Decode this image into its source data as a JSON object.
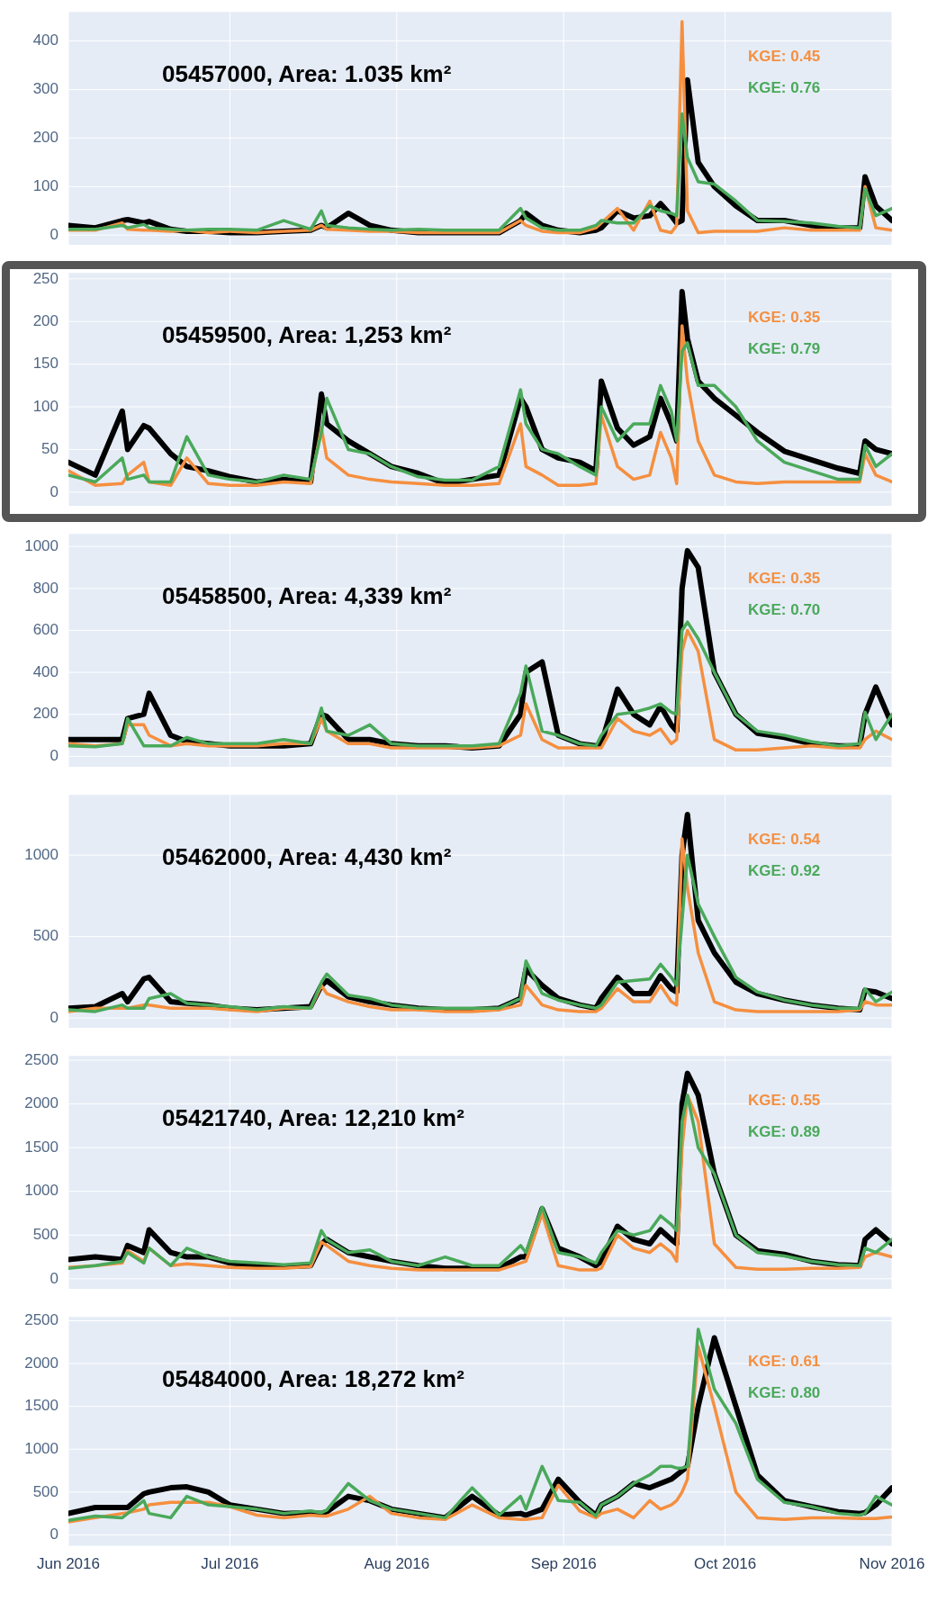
{
  "chart_data": [
    {
      "type": "line",
      "title": "05457000, Area: 1.035 km²",
      "marker": "none",
      "line_style": "solid",
      "grid": true,
      "legend": "top right",
      "tick_labels": "y",
      "xlim": [
        "2016-06-01",
        "2016-11-01"
      ],
      "xticks": [
        {
          "value": "2016-06-01",
          "label": null
        },
        {
          "value": "2016-07-01",
          "label": null
        },
        {
          "value": "2016-08-01",
          "label": null
        },
        {
          "value": "2016-09-01",
          "label": null
        },
        {
          "value": "2016-10-01",
          "label": null
        },
        {
          "value": "2016-11-01",
          "label": null
        }
      ],
      "ylim": [
        -20,
        460
      ],
      "yticks": [
        0,
        100,
        200,
        300,
        400
      ],
      "x": [
        "2016-06-01",
        "2016-06-06",
        "2016-06-11",
        "2016-06-12",
        "2016-06-15",
        "2016-06-16",
        "2016-06-20",
        "2016-06-23",
        "2016-06-27",
        "2016-07-01",
        "2016-07-06",
        "2016-07-11",
        "2016-07-16",
        "2016-07-18",
        "2016-07-19",
        "2016-07-23",
        "2016-07-27",
        "2016-07-31",
        "2016-08-05",
        "2016-08-10",
        "2016-08-15",
        "2016-08-20",
        "2016-08-24",
        "2016-08-25",
        "2016-08-28",
        "2016-08-31",
        "2016-09-04",
        "2016-09-07",
        "2016-09-08",
        "2016-09-11",
        "2016-09-14",
        "2016-09-17",
        "2016-09-19",
        "2016-09-21",
        "2016-09-22",
        "2016-09-23",
        "2016-09-24",
        "2016-09-26",
        "2016-09-29",
        "2016-10-03",
        "2016-10-07",
        "2016-10-12",
        "2016-10-17",
        "2016-10-22",
        "2016-10-26",
        "2016-10-27",
        "2016-10-29",
        "2016-11-01"
      ],
      "series": [
        {
          "color": "#000000",
          "values": [
            20,
            15,
            30,
            32,
            25,
            28,
            12,
            8,
            8,
            5,
            5,
            8,
            10,
            20,
            15,
            45,
            20,
            10,
            5,
            5,
            5,
            5,
            30,
            45,
            20,
            10,
            5,
            10,
            15,
            50,
            35,
            40,
            65,
            40,
            25,
            30,
            320,
            150,
            100,
            60,
            30,
            30,
            20,
            15,
            15,
            120,
            60,
            30
          ]
        },
        {
          "name": "KGE: 0.45",
          "color": "#f58f3f",
          "values": [
            10,
            10,
            25,
            12,
            10,
            10,
            8,
            10,
            5,
            8,
            5,
            8,
            10,
            20,
            12,
            10,
            8,
            8,
            5,
            5,
            5,
            5,
            30,
            20,
            8,
            5,
            5,
            15,
            25,
            55,
            10,
            70,
            10,
            5,
            20,
            440,
            50,
            5,
            8,
            8,
            8,
            15,
            10,
            10,
            10,
            100,
            15,
            10
          ]
        },
        {
          "name": "KGE: 0.76",
          "color": "#4aa95a",
          "values": [
            12,
            12,
            20,
            15,
            22,
            15,
            12,
            10,
            12,
            12,
            10,
            30,
            12,
            50,
            20,
            15,
            12,
            10,
            12,
            10,
            10,
            10,
            55,
            35,
            15,
            10,
            10,
            20,
            30,
            25,
            25,
            60,
            50,
            45,
            40,
            250,
            160,
            110,
            105,
            70,
            30,
            28,
            25,
            18,
            15,
            95,
            40,
            55
          ]
        }
      ]
    },
    {
      "type": "line",
      "title": "05459500, Area: 1,253 km²",
      "marker": "none",
      "line_style": "solid",
      "grid": true,
      "legend": "top right",
      "tick_labels": "y",
      "xlim": [
        "2016-06-01",
        "2016-11-01"
      ],
      "xticks": [
        {
          "value": "2016-06-01",
          "label": null
        },
        {
          "value": "2016-07-01",
          "label": null
        },
        {
          "value": "2016-08-01",
          "label": null
        },
        {
          "value": "2016-09-01",
          "label": null
        },
        {
          "value": "2016-10-01",
          "label": null
        },
        {
          "value": "2016-11-01",
          "label": null
        }
      ],
      "ylim": [
        -16,
        257
      ],
      "yticks": [
        0,
        50,
        100,
        150,
        200,
        250
      ],
      "x": [
        "2016-06-01",
        "2016-06-06",
        "2016-06-11",
        "2016-06-12",
        "2016-06-15",
        "2016-06-16",
        "2016-06-20",
        "2016-06-23",
        "2016-06-27",
        "2016-07-01",
        "2016-07-06",
        "2016-07-11",
        "2016-07-16",
        "2016-07-18",
        "2016-07-19",
        "2016-07-23",
        "2016-07-27",
        "2016-07-31",
        "2016-08-05",
        "2016-08-10",
        "2016-08-15",
        "2016-08-20",
        "2016-08-24",
        "2016-08-25",
        "2016-08-28",
        "2016-08-31",
        "2016-09-04",
        "2016-09-07",
        "2016-09-08",
        "2016-09-11",
        "2016-09-14",
        "2016-09-17",
        "2016-09-19",
        "2016-09-21",
        "2016-09-22",
        "2016-09-23",
        "2016-09-24",
        "2016-09-26",
        "2016-09-29",
        "2016-10-03",
        "2016-10-07",
        "2016-10-12",
        "2016-10-17",
        "2016-10-22",
        "2016-10-26",
        "2016-10-27",
        "2016-10-29",
        "2016-11-01"
      ],
      "series": [
        {
          "color": "#000000",
          "values": [
            35,
            20,
            95,
            50,
            78,
            75,
            45,
            30,
            25,
            18,
            12,
            15,
            12,
            115,
            80,
            60,
            45,
            30,
            22,
            10,
            15,
            20,
            110,
            100,
            50,
            40,
            35,
            25,
            130,
            75,
            55,
            65,
            110,
            80,
            60,
            235,
            180,
            130,
            110,
            90,
            70,
            48,
            38,
            28,
            22,
            60,
            50,
            45
          ]
        },
        {
          "name": "KGE: 0.35",
          "color": "#f58f3f",
          "values": [
            25,
            8,
            10,
            20,
            35,
            12,
            8,
            40,
            10,
            8,
            8,
            12,
            10,
            75,
            40,
            20,
            15,
            12,
            10,
            8,
            8,
            10,
            80,
            30,
            20,
            8,
            8,
            10,
            90,
            30,
            15,
            20,
            70,
            40,
            10,
            195,
            130,
            60,
            20,
            12,
            10,
            12,
            12,
            12,
            12,
            45,
            20,
            12
          ]
        },
        {
          "name": "KGE: 0.79",
          "color": "#4aa95a",
          "values": [
            20,
            12,
            40,
            15,
            20,
            12,
            12,
            65,
            20,
            15,
            12,
            20,
            15,
            70,
            110,
            50,
            45,
            30,
            18,
            14,
            14,
            30,
            120,
            80,
            50,
            45,
            30,
            20,
            100,
            60,
            80,
            80,
            125,
            95,
            60,
            165,
            175,
            125,
            125,
            100,
            60,
            35,
            25,
            15,
            15,
            55,
            30,
            45
          ]
        }
      ]
    },
    {
      "type": "line",
      "title": "05458500, Area: 4,339 km²",
      "marker": "none",
      "line_style": "solid",
      "grid": true,
      "legend": "top right",
      "tick_labels": "y",
      "xlim": [
        "2016-06-01",
        "2016-11-01"
      ],
      "xticks": [
        {
          "value": "2016-06-01",
          "label": null
        },
        {
          "value": "2016-07-01",
          "label": null
        },
        {
          "value": "2016-08-01",
          "label": null
        },
        {
          "value": "2016-09-01",
          "label": null
        },
        {
          "value": "2016-10-01",
          "label": null
        },
        {
          "value": "2016-11-01",
          "label": null
        }
      ],
      "ylim": [
        -50,
        1060
      ],
      "yticks": [
        0,
        200,
        400,
        600,
        800,
        1000
      ],
      "x": [
        "2016-06-01",
        "2016-06-06",
        "2016-06-11",
        "2016-06-12",
        "2016-06-15",
        "2016-06-16",
        "2016-06-20",
        "2016-06-23",
        "2016-06-27",
        "2016-07-01",
        "2016-07-06",
        "2016-07-11",
        "2016-07-16",
        "2016-07-18",
        "2016-07-19",
        "2016-07-23",
        "2016-07-27",
        "2016-07-31",
        "2016-08-05",
        "2016-08-10",
        "2016-08-15",
        "2016-08-20",
        "2016-08-24",
        "2016-08-25",
        "2016-08-28",
        "2016-08-31",
        "2016-09-04",
        "2016-09-07",
        "2016-09-08",
        "2016-09-11",
        "2016-09-14",
        "2016-09-17",
        "2016-09-19",
        "2016-09-21",
        "2016-09-22",
        "2016-09-23",
        "2016-09-24",
        "2016-09-26",
        "2016-09-29",
        "2016-10-03",
        "2016-10-07",
        "2016-10-12",
        "2016-10-17",
        "2016-10-22",
        "2016-10-26",
        "2016-10-27",
        "2016-10-29",
        "2016-11-01"
      ],
      "series": [
        {
          "color": "#000000",
          "values": [
            80,
            80,
            80,
            180,
            200,
            300,
            100,
            70,
            60,
            50,
            50,
            50,
            60,
            200,
            190,
            80,
            80,
            60,
            50,
            50,
            40,
            50,
            200,
            400,
            450,
            100,
            60,
            50,
            60,
            320,
            200,
            150,
            240,
            150,
            120,
            800,
            980,
            900,
            400,
            200,
            110,
            90,
            60,
            50,
            50,
            200,
            330,
            150
          ]
        },
        {
          "name": "KGE: 0.35",
          "color": "#f58f3f",
          "values": [
            60,
            50,
            60,
            150,
            150,
            100,
            50,
            60,
            50,
            50,
            50,
            60,
            60,
            180,
            120,
            60,
            60,
            40,
            40,
            40,
            40,
            50,
            100,
            250,
            80,
            40,
            40,
            40,
            40,
            180,
            120,
            100,
            130,
            60,
            80,
            500,
            600,
            500,
            80,
            30,
            30,
            40,
            50,
            40,
            40,
            80,
            120,
            80
          ]
        },
        {
          "name": "KGE: 0.70",
          "color": "#4aa95a",
          "values": [
            50,
            45,
            60,
            180,
            50,
            50,
            50,
            90,
            60,
            60,
            60,
            80,
            60,
            230,
            120,
            100,
            150,
            60,
            50,
            50,
            50,
            60,
            300,
            430,
            120,
            100,
            60,
            50,
            100,
            200,
            210,
            230,
            250,
            210,
            200,
            600,
            640,
            560,
            400,
            200,
            120,
            100,
            70,
            50,
            60,
            210,
            80,
            200
          ]
        }
      ]
    },
    {
      "type": "line",
      "title": "05462000, Area: 4,430 km²",
      "marker": "none",
      "line_style": "solid",
      "grid": true,
      "legend": "top right",
      "tick_labels": "y",
      "xlim": [
        "2016-06-01",
        "2016-11-01"
      ],
      "xticks": [
        {
          "value": "2016-06-01",
          "label": null
        },
        {
          "value": "2016-07-01",
          "label": null
        },
        {
          "value": "2016-08-01",
          "label": null
        },
        {
          "value": "2016-09-01",
          "label": null
        },
        {
          "value": "2016-10-01",
          "label": null
        },
        {
          "value": "2016-11-01",
          "label": null
        }
      ],
      "ylim": [
        -60,
        1370
      ],
      "yticks": [
        0,
        500,
        1000
      ],
      "x": [
        "2016-06-01",
        "2016-06-06",
        "2016-06-11",
        "2016-06-12",
        "2016-06-15",
        "2016-06-16",
        "2016-06-20",
        "2016-06-23",
        "2016-06-27",
        "2016-07-01",
        "2016-07-06",
        "2016-07-11",
        "2016-07-16",
        "2016-07-18",
        "2016-07-19",
        "2016-07-23",
        "2016-07-27",
        "2016-07-31",
        "2016-08-05",
        "2016-08-10",
        "2016-08-15",
        "2016-08-20",
        "2016-08-24",
        "2016-08-25",
        "2016-08-28",
        "2016-08-31",
        "2016-09-04",
        "2016-09-07",
        "2016-09-08",
        "2016-09-11",
        "2016-09-14",
        "2016-09-17",
        "2016-09-19",
        "2016-09-21",
        "2016-09-22",
        "2016-09-23",
        "2016-09-24",
        "2016-09-26",
        "2016-09-29",
        "2016-10-03",
        "2016-10-07",
        "2016-10-12",
        "2016-10-17",
        "2016-10-22",
        "2016-10-26",
        "2016-10-27",
        "2016-10-29",
        "2016-11-01"
      ],
      "series": [
        {
          "color": "#000000",
          "values": [
            60,
            70,
            150,
            100,
            240,
            250,
            100,
            90,
            80,
            60,
            50,
            60,
            70,
            200,
            230,
            130,
            100,
            80,
            60,
            50,
            50,
            60,
            120,
            300,
            200,
            120,
            80,
            60,
            120,
            250,
            150,
            150,
            260,
            180,
            160,
            1000,
            1250,
            600,
            400,
            220,
            150,
            110,
            80,
            60,
            50,
            170,
            160,
            120
          ]
        },
        {
          "name": "KGE: 0.54",
          "color": "#f58f3f",
          "values": [
            40,
            60,
            60,
            60,
            80,
            80,
            60,
            60,
            60,
            50,
            40,
            60,
            60,
            200,
            150,
            100,
            70,
            50,
            50,
            40,
            40,
            50,
            80,
            200,
            80,
            50,
            40,
            40,
            60,
            180,
            100,
            100,
            200,
            100,
            80,
            1100,
            800,
            400,
            100,
            50,
            40,
            40,
            40,
            40,
            50,
            100,
            80,
            80
          ]
        },
        {
          "name": "KGE: 0.92",
          "color": "#4aa95a",
          "values": [
            50,
            40,
            80,
            60,
            60,
            120,
            150,
            90,
            80,
            70,
            50,
            70,
            60,
            220,
            270,
            140,
            120,
            80,
            60,
            60,
            60,
            60,
            120,
            350,
            150,
            110,
            80,
            60,
            80,
            220,
            230,
            240,
            330,
            250,
            200,
            600,
            1000,
            700,
            500,
            250,
            160,
            110,
            80,
            60,
            60,
            180,
            100,
            160
          ]
        }
      ]
    },
    {
      "type": "line",
      "title": "05421740, Area: 12,210 km²",
      "marker": "none",
      "line_style": "solid",
      "grid": true,
      "legend": "top right",
      "tick_labels": "y",
      "xlim": [
        "2016-06-01",
        "2016-11-01"
      ],
      "xticks": [
        {
          "value": "2016-06-01",
          "label": null
        },
        {
          "value": "2016-07-01",
          "label": null
        },
        {
          "value": "2016-08-01",
          "label": null
        },
        {
          "value": "2016-09-01",
          "label": null
        },
        {
          "value": "2016-10-01",
          "label": null
        },
        {
          "value": "2016-11-01",
          "label": null
        }
      ],
      "ylim": [
        -115,
        2550
      ],
      "yticks": [
        0,
        500,
        1000,
        1500,
        2000,
        2500
      ],
      "x": [
        "2016-06-01",
        "2016-06-06",
        "2016-06-11",
        "2016-06-12",
        "2016-06-15",
        "2016-06-16",
        "2016-06-20",
        "2016-06-23",
        "2016-06-27",
        "2016-07-01",
        "2016-07-06",
        "2016-07-11",
        "2016-07-16",
        "2016-07-18",
        "2016-07-19",
        "2016-07-23",
        "2016-07-27",
        "2016-07-31",
        "2016-08-05",
        "2016-08-10",
        "2016-08-15",
        "2016-08-20",
        "2016-08-24",
        "2016-08-25",
        "2016-08-28",
        "2016-08-31",
        "2016-09-04",
        "2016-09-07",
        "2016-09-08",
        "2016-09-11",
        "2016-09-14",
        "2016-09-17",
        "2016-09-19",
        "2016-09-21",
        "2016-09-22",
        "2016-09-23",
        "2016-09-24",
        "2016-09-26",
        "2016-09-29",
        "2016-10-03",
        "2016-10-07",
        "2016-10-12",
        "2016-10-17",
        "2016-10-22",
        "2016-10-26",
        "2016-10-27",
        "2016-10-29",
        "2016-11-01"
      ],
      "series": [
        {
          "color": "#000000",
          "values": [
            220,
            250,
            220,
            380,
            300,
            560,
            300,
            250,
            250,
            180,
            150,
            140,
            150,
            400,
            450,
            300,
            250,
            200,
            150,
            120,
            120,
            120,
            250,
            250,
            800,
            350,
            250,
            150,
            200,
            600,
            450,
            400,
            560,
            450,
            400,
            2000,
            2350,
            2100,
            1200,
            500,
            320,
            280,
            200,
            160,
            150,
            450,
            560,
            400
          ]
        },
        {
          "name": "KGE: 0.55",
          "color": "#f58f3f",
          "values": [
            130,
            150,
            180,
            320,
            200,
            350,
            150,
            170,
            150,
            130,
            120,
            120,
            140,
            420,
            380,
            200,
            150,
            120,
            100,
            100,
            100,
            100,
            180,
            200,
            750,
            150,
            100,
            100,
            120,
            500,
            350,
            300,
            400,
            300,
            200,
            1500,
            2100,
            1800,
            400,
            130,
            110,
            110,
            120,
            120,
            130,
            250,
            300,
            250
          ]
        },
        {
          "name": "KGE: 0.89",
          "color": "#4aa95a",
          "values": [
            120,
            150,
            200,
            300,
            180,
            350,
            150,
            350,
            250,
            200,
            180,
            160,
            180,
            550,
            450,
            300,
            330,
            200,
            150,
            250,
            150,
            150,
            380,
            300,
            820,
            300,
            250,
            180,
            300,
            550,
            500,
            550,
            720,
            620,
            550,
            1800,
            2100,
            1500,
            1200,
            500,
            300,
            260,
            200,
            160,
            150,
            350,
            300,
            450
          ]
        }
      ]
    },
    {
      "type": "line",
      "title": "05484000, Area: 18,272 km²",
      "marker": "none",
      "line_style": "solid",
      "grid": true,
      "legend": "top right",
      "xlim": [
        "2016-06-01",
        "2016-11-01"
      ],
      "xticks": [
        {
          "value": "2016-06-01",
          "label": "Jun 2016"
        },
        {
          "value": "2016-07-01",
          "label": "Jul 2016"
        },
        {
          "value": "2016-08-01",
          "label": "Aug 2016"
        },
        {
          "value": "2016-09-01",
          "label": "Sep 2016"
        },
        {
          "value": "2016-10-01",
          "label": "Oct 2016"
        },
        {
          "value": "2016-11-01",
          "label": "Nov 2016"
        }
      ],
      "ylim": [
        -128,
        2545
      ],
      "yticks": [
        0,
        500,
        1000,
        1500,
        2000,
        2500
      ],
      "x": [
        "2016-06-01",
        "2016-06-06",
        "2016-06-11",
        "2016-06-12",
        "2016-06-15",
        "2016-06-16",
        "2016-06-20",
        "2016-06-23",
        "2016-06-27",
        "2016-07-01",
        "2016-07-06",
        "2016-07-11",
        "2016-07-16",
        "2016-07-18",
        "2016-07-19",
        "2016-07-23",
        "2016-07-27",
        "2016-07-31",
        "2016-08-05",
        "2016-08-10",
        "2016-08-15",
        "2016-08-20",
        "2016-08-24",
        "2016-08-25",
        "2016-08-28",
        "2016-08-31",
        "2016-09-04",
        "2016-09-07",
        "2016-09-08",
        "2016-09-11",
        "2016-09-14",
        "2016-09-17",
        "2016-09-19",
        "2016-09-21",
        "2016-09-22",
        "2016-09-23",
        "2016-09-24",
        "2016-09-26",
        "2016-09-29",
        "2016-10-03",
        "2016-10-07",
        "2016-10-12",
        "2016-10-17",
        "2016-10-22",
        "2016-10-26",
        "2016-10-27",
        "2016-10-29",
        "2016-11-01"
      ],
      "series": [
        {
          "color": "#000000",
          "values": [
            250,
            320,
            320,
            320,
            480,
            500,
            550,
            560,
            500,
            350,
            300,
            250,
            260,
            250,
            270,
            450,
            400,
            300,
            250,
            200,
            450,
            230,
            250,
            230,
            300,
            650,
            380,
            230,
            350,
            450,
            600,
            550,
            600,
            650,
            700,
            750,
            800,
            1500,
            2300,
            1500,
            700,
            400,
            330,
            270,
            250,
            260,
            350,
            550
          ]
        },
        {
          "name": "KGE: 0.61",
          "color": "#f58f3f",
          "values": [
            150,
            200,
            250,
            260,
            300,
            350,
            380,
            380,
            380,
            330,
            230,
            200,
            230,
            220,
            220,
            300,
            450,
            250,
            200,
            180,
            350,
            200,
            180,
            180,
            200,
            580,
            280,
            200,
            250,
            300,
            200,
            400,
            300,
            350,
            400,
            500,
            650,
            2200,
            1500,
            500,
            200,
            180,
            200,
            200,
            190,
            190,
            190,
            210
          ]
        },
        {
          "name": "KGE: 0.80",
          "color": "#4aa95a",
          "values": [
            170,
            220,
            200,
            250,
            400,
            250,
            200,
            450,
            350,
            330,
            300,
            250,
            280,
            260,
            290,
            600,
            400,
            300,
            250,
            200,
            550,
            230,
            450,
            300,
            800,
            400,
            380,
            220,
            350,
            450,
            600,
            700,
            800,
            800,
            780,
            780,
            800,
            2400,
            1700,
            1300,
            650,
            380,
            330,
            250,
            230,
            250,
            450,
            350
          ]
        }
      ]
    }
  ]
}
